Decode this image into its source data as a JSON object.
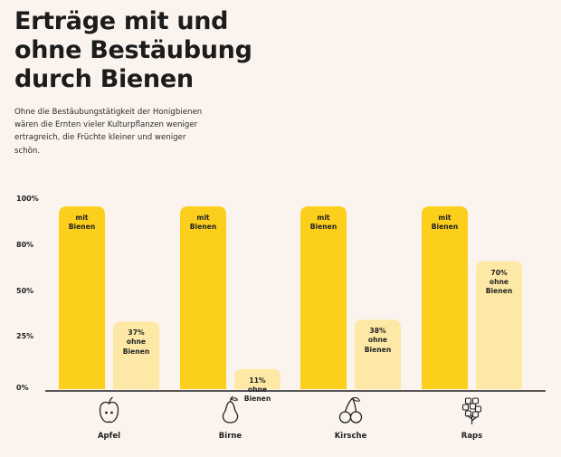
{
  "page": {
    "title_lines": [
      "Erträge mit und",
      "ohne Bestäubung",
      "durch Bienen"
    ],
    "subtitle_lines": [
      "Ohne die Bestäubungstätigkeit der Honigbienen",
      "wären die Ernten vieler Kulturpflanzen weniger",
      "ertragreich, die Früchte kleiner und weniger",
      "schön."
    ]
  },
  "chart_data": {
    "type": "bar",
    "title": "Erträge mit und ohne Bestäubung durch Bienen",
    "categories": [
      "Apfel",
      "Birne",
      "Kirsche",
      "Raps"
    ],
    "icons": [
      "apple-icon",
      "pear-icon",
      "cherry-icon",
      "rapeseed-icon"
    ],
    "series": [
      {
        "name": "mit Bienen",
        "values": [
          100,
          100,
          100,
          100
        ],
        "labels": [
          [
            "mit",
            "Bienen"
          ],
          [
            "mit",
            "Bienen"
          ],
          [
            "mit",
            "Bienen"
          ],
          [
            "mit",
            "Bienen"
          ]
        ],
        "color": "#fccf1d"
      },
      {
        "name": "ohne Bienen",
        "values": [
          37,
          11,
          38,
          70
        ],
        "labels": [
          [
            "37%",
            "ohne",
            "Bienen"
          ],
          [
            "11%",
            "ohne",
            "Bienen"
          ],
          [
            "38%",
            "ohne",
            "Bienen"
          ],
          [
            "70%",
            "ohne",
            "Bienen"
          ]
        ],
        "color": "#fde9a5"
      }
    ],
    "yticks": [
      "100%",
      "80%",
      "50%",
      "25%",
      "0%"
    ],
    "xlabel": "",
    "ylabel": "",
    "ylim": [
      0,
      100
    ],
    "grid": false
  }
}
